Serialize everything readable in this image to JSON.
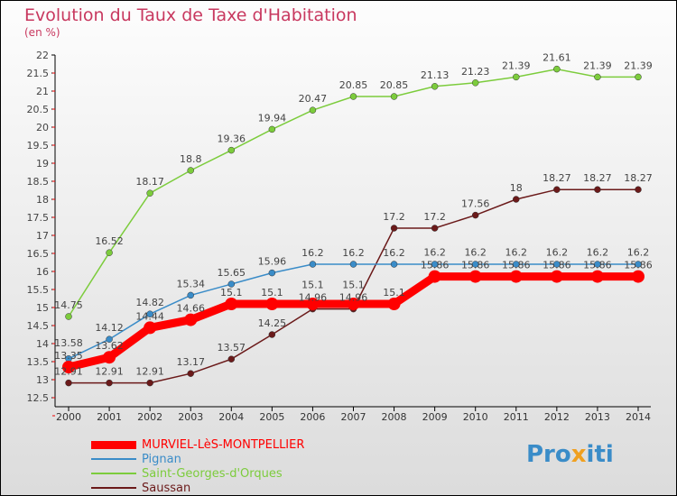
{
  "chart_data": {
    "type": "line",
    "title": "Evolution du Taux de Taxe d'Habitation",
    "subtitle": "(en %)",
    "xlabel": "",
    "ylabel": "",
    "ylim": [
      12.5,
      22
    ],
    "yticks": [
      "12.5",
      "13",
      "13.5",
      "14",
      "14.5",
      "15",
      "15.5",
      "16",
      "16.5",
      "17",
      "17.5",
      "18",
      "18.5",
      "19",
      "19.5",
      "20",
      "20.5",
      "21",
      "21.5",
      "22"
    ],
    "categories": [
      "2000",
      "2001",
      "2002",
      "2003",
      "2004",
      "2005",
      "2006",
      "2007",
      "2008",
      "2009",
      "2010",
      "2011",
      "2012",
      "2013",
      "2014"
    ],
    "series": [
      {
        "name": "MURVIEL-LèS-MONTPELLIER",
        "color": "#ff0000",
        "values": [
          13.35,
          13.62,
          14.44,
          14.66,
          15.1,
          15.1,
          15.1,
          15.1,
          15.1,
          15.86,
          15.86,
          15.86,
          15.86,
          15.86,
          15.86
        ]
      },
      {
        "name": "Pignan",
        "color": "#3a8cc8",
        "values": [
          13.58,
          14.12,
          14.82,
          15.34,
          15.65,
          15.96,
          16.2,
          16.2,
          16.2,
          16.2,
          16.2,
          16.2,
          16.2,
          16.2,
          16.2
        ]
      },
      {
        "name": "Saint-Georges-d'Orques",
        "color": "#7ccc3c",
        "values": [
          14.75,
          16.52,
          18.17,
          18.8,
          19.36,
          19.94,
          20.47,
          20.85,
          20.85,
          21.13,
          21.23,
          21.39,
          21.61,
          21.39,
          21.39
        ]
      },
      {
        "name": "Saussan",
        "color": "#6b1a1a",
        "values": [
          12.91,
          12.91,
          12.91,
          13.17,
          13.57,
          14.25,
          14.96,
          14.96,
          17.2,
          17.2,
          17.56,
          18,
          18.27,
          18.27,
          18.27
        ]
      }
    ],
    "legend": "bottom-left",
    "grid": false
  },
  "logo": "Proxiti"
}
